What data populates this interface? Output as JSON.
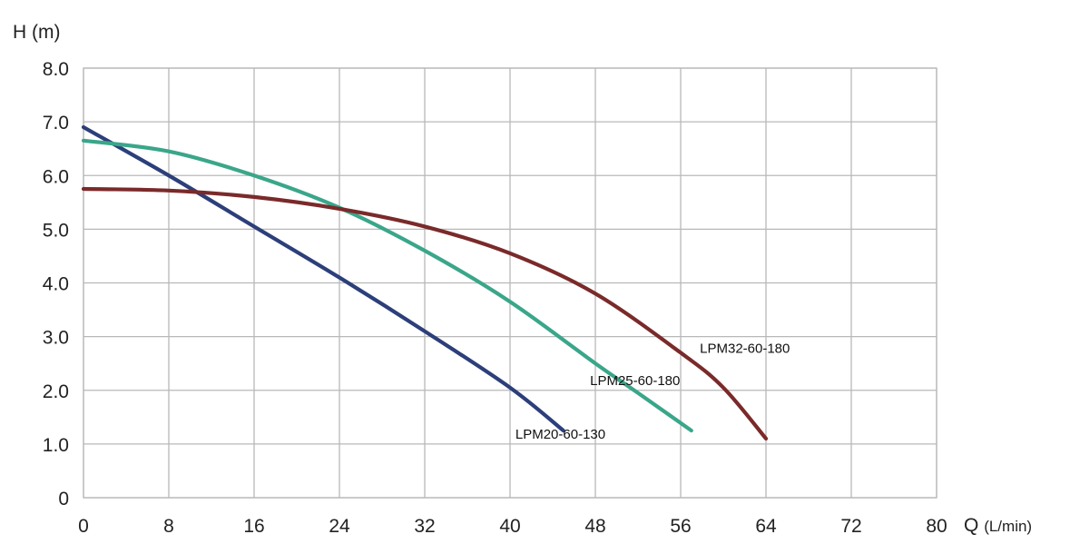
{
  "chart_data": {
    "type": "line",
    "ylabel": "H (m)",
    "xlabel_main": "Q",
    "xlabel_unit": "(L/min)",
    "xlim": [
      0,
      80
    ],
    "ylim": [
      0,
      8
    ],
    "x_ticks": [
      "0",
      "8",
      "16",
      "24",
      "32",
      "40",
      "48",
      "56",
      "64",
      "72",
      "80"
    ],
    "y_ticks": [
      "0",
      "1.0",
      "2.0",
      "3.0",
      "4.0",
      "5.0",
      "6.0",
      "7.0",
      "8.0"
    ],
    "grid": true,
    "series": [
      {
        "name": "LPM20-60-130",
        "color": "#2c3f7a",
        "x": [
          0,
          8,
          16,
          24,
          32,
          40,
          45
        ],
        "y": [
          6.9,
          6.0,
          5.05,
          4.1,
          3.1,
          2.05,
          1.25
        ]
      },
      {
        "name": "LPM25-60-180",
        "color": "#3aa68a",
        "x": [
          0,
          8,
          16,
          24,
          32,
          40,
          48,
          52,
          57
        ],
        "y": [
          6.65,
          6.45,
          6.0,
          5.4,
          4.6,
          3.65,
          2.5,
          1.95,
          1.25
        ]
      },
      {
        "name": "LPM32-60-180",
        "color": "#7a2a2a",
        "x": [
          0,
          8,
          16,
          24,
          32,
          40,
          48,
          56,
          60,
          64
        ],
        "y": [
          5.75,
          5.72,
          5.6,
          5.38,
          5.05,
          4.55,
          3.8,
          2.7,
          2.05,
          1.1
        ]
      }
    ],
    "annotations": [
      {
        "text": "LPM20-60-130",
        "x": 40.5,
        "y": 1.1
      },
      {
        "text": "LPM25-60-180",
        "x": 47.5,
        "y": 2.1
      },
      {
        "text": "LPM32-60-180",
        "x": 57.8,
        "y": 2.7
      }
    ]
  }
}
